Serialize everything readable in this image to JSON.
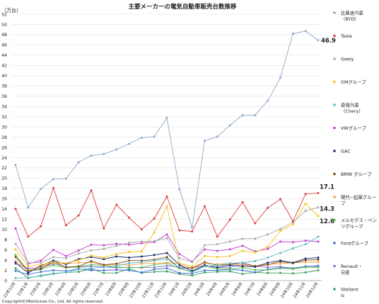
{
  "chart_data": {
    "type": "line",
    "title": "主要メーカーの電気自動車販売台数推移",
    "ylabel": "（万台）",
    "ylim": [
      0,
      52
    ],
    "yticks": [
      0,
      2,
      4,
      6,
      8,
      10,
      12,
      14,
      16,
      18,
      20,
      22,
      24,
      26,
      28,
      30,
      32,
      34,
      36,
      38,
      40,
      42,
      44,
      46,
      48,
      50,
      52
    ],
    "grid": "horizontal",
    "legend": "right",
    "categories": [
      "22年12月",
      "23年1月",
      "23年2月",
      "23年3月",
      "23年4月",
      "23年5月",
      "23年6月",
      "23年7月",
      "23年8月",
      "23年9月",
      "23年10月",
      "23年11月",
      "23年12月",
      "24年1月",
      "24年2月",
      "24年3月",
      "24年4月",
      "24年5月",
      "24年6月",
      "24年7月",
      "24年8月",
      "24年9月",
      "24年10月",
      "24年11月",
      "24年12月"
    ],
    "series": [
      {
        "name": "比亜迪汽車（BYD）",
        "color": "#8fa8c9",
        "values": [
          22.6,
          14.3,
          17.9,
          19.8,
          19.9,
          23.1,
          24.4,
          24.7,
          25.6,
          26.7,
          27.9,
          28.1,
          31.8,
          17.8,
          10.4,
          27.3,
          28.1,
          30.3,
          32.3,
          32.3,
          35.1,
          39.6,
          48.2,
          48.7,
          46.9
        ]
      },
      {
        "name": "Tesla",
        "color": "#e03c3c",
        "values": [
          14.0,
          8.6,
          10.6,
          18.1,
          10.8,
          12.7,
          17.6,
          10.2,
          14.8,
          12.3,
          10.0,
          12.1,
          16.4,
          9.8,
          9.6,
          14.5,
          8.6,
          11.9,
          15.3,
          11.2,
          14.2,
          15.9,
          11.6,
          16.9,
          17.1
        ]
      },
      {
        "name": "Geely",
        "color": "#a8a8a8",
        "values": [
          7.2,
          3.5,
          3.5,
          4.6,
          4.4,
          5.3,
          5.9,
          6.2,
          6.8,
          7.4,
          7.6,
          7.7,
          8.3,
          4.4,
          3.6,
          6.9,
          7.1,
          7.6,
          8.2,
          8.2,
          9.0,
          10.1,
          11.4,
          13.6,
          14.3
        ]
      },
      {
        "name": "GMグループ",
        "color": "#f2c21f",
        "values": [
          6.1,
          2.8,
          3.1,
          3.6,
          3.4,
          4.0,
          4.9,
          4.5,
          5.2,
          5.6,
          5.7,
          9.4,
          14.5,
          3.4,
          2.8,
          4.8,
          4.6,
          4.8,
          5.8,
          5.5,
          6.6,
          9.7,
          11.0,
          15.0,
          12.6
        ]
      },
      {
        "name": "奇瑞汽車（Chery）",
        "color": "#5bb7c8",
        "values": [
          0.5,
          0.6,
          0.9,
          1.3,
          1.6,
          2.2,
          2.4,
          2.6,
          2.9,
          3.4,
          3.6,
          3.9,
          4.2,
          2.5,
          1.6,
          2.8,
          3.0,
          3.4,
          3.5,
          3.8,
          4.5,
          5.4,
          6.3,
          7.1,
          8.6
        ]
      },
      {
        "name": "VWグループ",
        "color": "#c33fd0",
        "values": [
          10.2,
          3.3,
          3.9,
          6.0,
          4.8,
          5.9,
          7.0,
          6.9,
          7.2,
          7.0,
          7.3,
          7.5,
          9.0,
          5.2,
          3.7,
          6.1,
          5.8,
          6.1,
          6.8,
          5.7,
          6.2,
          7.6,
          7.5,
          7.8,
          7.6
        ]
      },
      {
        "name": "GAC",
        "color": "#1a2a6c",
        "values": [
          3.5,
          1.5,
          2.9,
          3.9,
          3.2,
          4.2,
          4.6,
          4.2,
          4.7,
          4.5,
          4.7,
          5.0,
          5.4,
          3.1,
          1.9,
          3.0,
          2.6,
          3.0,
          2.8,
          2.7,
          3.5,
          3.9,
          3.5,
          4.3,
          4.5
        ]
      },
      {
        "name": "BMW グループ",
        "color": "#7b4a19",
        "values": [
          4.6,
          1.9,
          2.3,
          3.7,
          2.6,
          2.8,
          3.8,
          3.1,
          3.3,
          3.9,
          3.9,
          4.1,
          4.6,
          2.4,
          2.5,
          3.6,
          3.0,
          3.1,
          3.5,
          2.8,
          3.1,
          3.7,
          3.4,
          4.0,
          4.1
        ]
      },
      {
        "name": "現代−起亜グループ",
        "color": "#f5a142",
        "values": [
          3.8,
          2.0,
          2.8,
          3.5,
          3.3,
          3.5,
          3.6,
          3.0,
          3.2,
          3.0,
          3.3,
          3.4,
          3.5,
          3.3,
          2.4,
          3.4,
          3.2,
          3.4,
          3.0,
          2.9,
          3.2,
          3.3,
          3.5,
          3.6,
          3.6
        ]
      },
      {
        "name": "メルセデス・ベンツグループ",
        "color": "#4ec24e",
        "values": [
          5.0,
          1.9,
          2.2,
          3.0,
          2.5,
          2.7,
          3.1,
          3.0,
          2.7,
          2.5,
          2.6,
          3.1,
          3.4,
          2.4,
          1.8,
          2.8,
          2.3,
          2.3,
          2.5,
          2.1,
          2.1,
          2.4,
          2.3,
          2.6,
          2.6
        ]
      },
      {
        "name": "Fordグループ",
        "color": "#3b6fd1",
        "values": [
          1.9,
          1.2,
          1.7,
          2.0,
          1.9,
          2.3,
          2.0,
          2.0,
          2.1,
          2.0,
          1.6,
          2.2,
          2.4,
          1.5,
          1.4,
          2.0,
          2.0,
          2.2,
          2.0,
          1.6,
          2.2,
          2.5,
          2.4,
          2.8,
          2.9
        ]
      },
      {
        "name": "Renault・日産",
        "color": "#8e6fc7",
        "values": [
          3.3,
          2.4,
          2.5,
          3.3,
          2.7,
          2.6,
          2.8,
          2.7,
          2.5,
          2.6,
          2.5,
          2.6,
          2.9,
          2.7,
          2.4,
          3.0,
          2.5,
          2.6,
          3.2,
          2.8,
          2.6,
          2.7,
          2.4,
          2.6,
          2.7
        ]
      },
      {
        "name": "Stellantis",
        "color": "#3e9a58",
        "values": [
          2.4,
          0.5,
          1.0,
          1.4,
          1.6,
          1.7,
          2.3,
          1.5,
          1.5,
          2.3,
          1.5,
          1.7,
          1.8,
          1.3,
          1.0,
          1.6,
          1.7,
          1.8,
          1.3,
          1.6,
          1.5,
          1.5,
          1.4,
          1.6,
          2.0
        ]
      }
    ],
    "annotations": [
      {
        "series": 0,
        "index": 24,
        "text": "46.9"
      },
      {
        "series": 1,
        "index": 24,
        "text": "17.1"
      },
      {
        "series": 2,
        "index": 24,
        "text": "14.3"
      },
      {
        "series": 3,
        "index": 24,
        "text": "12.6"
      }
    ],
    "copyright": "Copyright(C)MarkLines Co., Ltd. All rights reserved."
  }
}
